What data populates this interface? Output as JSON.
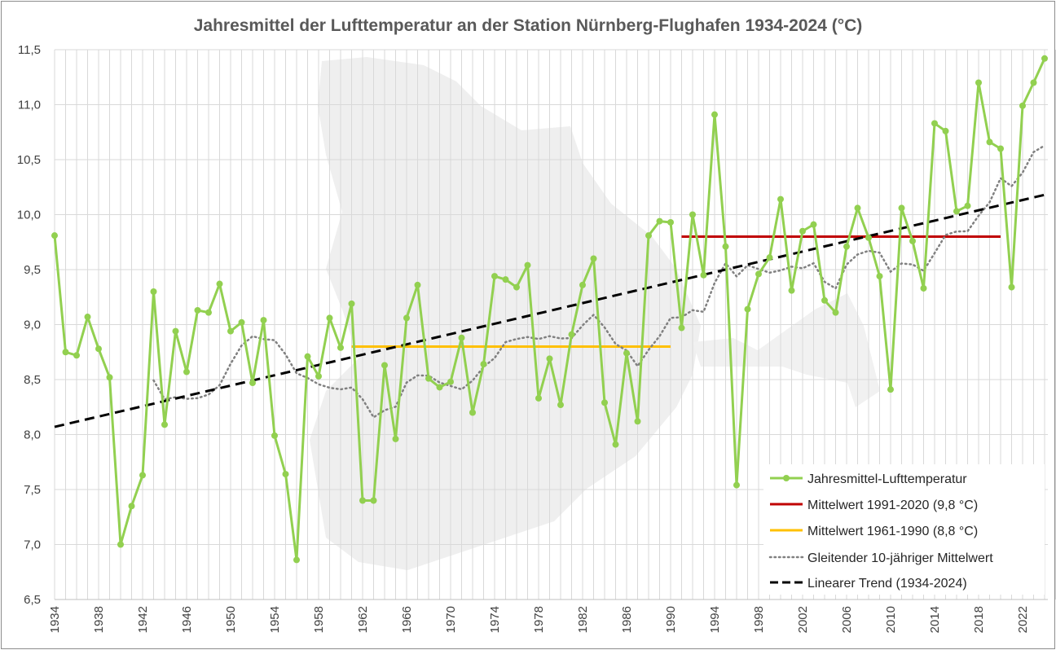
{
  "chart_data": {
    "type": "line",
    "title": "Jahresmittel der Lufttemperatur an der Station Nürnberg-Flughafen 1934-2024 (°C)",
    "xlabel": "",
    "ylabel": "",
    "xlim": [
      1934,
      2024
    ],
    "ylim": [
      6.5,
      11.5
    ],
    "y_ticks": [
      "6,5",
      "7,0",
      "7,5",
      "8,0",
      "8,5",
      "9,0",
      "9,5",
      "10,0",
      "10,5",
      "11,0",
      "11,5"
    ],
    "x_ticks": [
      "1934",
      "1938",
      "1942",
      "1946",
      "1950",
      "1954",
      "1958",
      "1962",
      "1966",
      "1970",
      "1974",
      "1978",
      "1982",
      "1986",
      "1990",
      "1994",
      "1998",
      "2002",
      "2006",
      "2010",
      "2014",
      "2018",
      "2022"
    ],
    "grid": true,
    "legend_position": "bottom-right",
    "x": [
      1934,
      1935,
      1936,
      1937,
      1938,
      1939,
      1940,
      1941,
      1942,
      1943,
      1944,
      1945,
      1946,
      1947,
      1948,
      1949,
      1950,
      1951,
      1952,
      1953,
      1954,
      1955,
      1956,
      1957,
      1958,
      1959,
      1960,
      1961,
      1962,
      1963,
      1964,
      1965,
      1966,
      1967,
      1968,
      1969,
      1970,
      1971,
      1972,
      1973,
      1974,
      1975,
      1976,
      1977,
      1978,
      1979,
      1980,
      1981,
      1982,
      1983,
      1984,
      1985,
      1986,
      1987,
      1988,
      1989,
      1990,
      1991,
      1992,
      1993,
      1994,
      1995,
      1996,
      1997,
      1998,
      1999,
      2000,
      2001,
      2002,
      2003,
      2004,
      2005,
      2006,
      2007,
      2008,
      2009,
      2010,
      2011,
      2012,
      2013,
      2014,
      2015,
      2016,
      2017,
      2018,
      2019,
      2020,
      2021,
      2022,
      2023,
      2024
    ],
    "series": [
      {
        "name": "Jahresmittel-Lufttemperatur",
        "color": "#92d050",
        "style": "line-markers",
        "values": [
          9.81,
          8.75,
          8.72,
          9.07,
          8.78,
          8.52,
          7.0,
          7.35,
          7.63,
          9.3,
          8.09,
          8.94,
          8.57,
          9.13,
          9.11,
          9.37,
          8.94,
          9.02,
          8.47,
          9.04,
          7.99,
          7.64,
          6.86,
          8.71,
          8.53,
          9.06,
          8.79,
          9.19,
          7.4,
          7.4,
          8.63,
          7.96,
          9.06,
          9.36,
          8.51,
          8.43,
          8.48,
          8.88,
          8.2,
          8.64,
          9.44,
          9.41,
          9.34,
          9.54,
          8.33,
          8.69,
          8.27,
          8.91,
          9.36,
          9.6,
          8.29,
          7.91,
          8.74,
          8.12,
          9.81,
          9.94,
          9.93,
          8.97,
          10.0,
          9.45,
          10.91,
          9.71,
          7.54,
          9.14,
          9.46,
          9.61,
          10.14,
          9.31,
          9.85,
          9.91,
          9.22,
          9.11,
          9.71,
          10.06,
          9.79,
          9.44,
          8.41,
          10.06,
          9.76,
          9.33,
          10.83,
          10.76,
          10.03,
          10.08,
          11.2,
          10.66,
          10.6,
          9.34,
          10.99,
          11.2,
          11.42
        ]
      },
      {
        "name": "Mittelwert 1991-2020 (9,8 °C)",
        "color": "#c00000",
        "style": "flat",
        "from": 1991,
        "to": 2020,
        "value": 9.8
      },
      {
        "name": "Mittelwert 1961-1990 (8,8 °C)",
        "color": "#ffc000",
        "style": "flat",
        "from": 1961,
        "to": 1990,
        "value": 8.8
      },
      {
        "name": "Gleitender 10-jähriger Mittelwert",
        "color": "#808080",
        "style": "dotted",
        "window": 10
      },
      {
        "name": "Linearer Trend (1934-2024)",
        "color": "#000000",
        "style": "dashed",
        "from": 1934,
        "to": 2024,
        "start_value": 8.07,
        "end_value": 10.18
      }
    ]
  }
}
